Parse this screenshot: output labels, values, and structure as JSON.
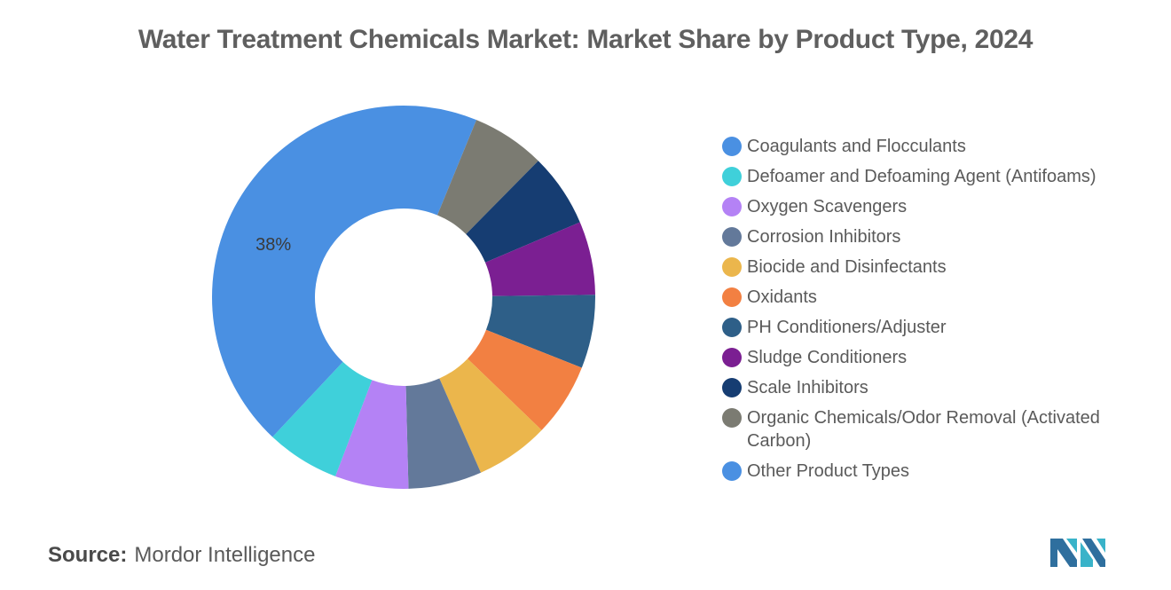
{
  "title": "Water Treatment Chemicals Market: Market Share by Product Type, 2024",
  "source_label": "Source:",
  "source_value": "Mordor Intelligence",
  "chart_data": {
    "type": "pie",
    "donut": true,
    "title": "Water Treatment Chemicals Market: Market Share by Product Type, 2024",
    "legend_position": "right",
    "slices": [
      {
        "label": "Coagulants and Flocculants",
        "value": 6.2,
        "color": "#4a90e2"
      },
      {
        "label": "Organic Chemicals/Odor Removal (Activated Carbon)",
        "value": 6.2,
        "color": "#7b7b72"
      },
      {
        "label": "Scale Inhibitors",
        "value": 6.2,
        "color": "#163d72"
      },
      {
        "label": "Sludge Conditioners",
        "value": 6.2,
        "color": "#7b1f92"
      },
      {
        "label": "PH Conditioners/Adjuster",
        "value": 6.2,
        "color": "#2e5f88"
      },
      {
        "label": "Oxidants",
        "value": 6.2,
        "color": "#f28042"
      },
      {
        "label": "Biocide and Disinfectants",
        "value": 6.2,
        "color": "#ebb64c"
      },
      {
        "label": "Corrosion Inhibitors",
        "value": 6.2,
        "color": "#63799a"
      },
      {
        "label": "Oxygen Scavengers",
        "value": 6.2,
        "color": "#b482f5"
      },
      {
        "label": "Defoamer and Defoaming Agent (Antifoams)",
        "value": 6.2,
        "color": "#3fd0da"
      },
      {
        "label": "Other Product Types",
        "value": 38,
        "color": "#4a90e2",
        "data_label": "38%"
      }
    ],
    "legend": [
      {
        "label": "Coagulants and Flocculants",
        "color": "#4a90e2"
      },
      {
        "label": "Defoamer and Defoaming Agent (Antifoams)",
        "color": "#3fd0da"
      },
      {
        "label": "Oxygen Scavengers",
        "color": "#b482f5"
      },
      {
        "label": "Corrosion Inhibitors",
        "color": "#63799a"
      },
      {
        "label": "Biocide and Disinfectants",
        "color": "#ebb64c"
      },
      {
        "label": "Oxidants",
        "color": "#f28042"
      },
      {
        "label": "PH Conditioners/Adjuster",
        "color": "#2e5f88"
      },
      {
        "label": "Sludge Conditioners",
        "color": "#7b1f92"
      },
      {
        "label": "Scale Inhibitors",
        "color": "#163d72"
      },
      {
        "label": "Organic Chemicals/Odor Removal (Activated Carbon)",
        "color": "#7b7b72"
      },
      {
        "label": "Other Product Types",
        "color": "#4a90e2"
      }
    ]
  }
}
